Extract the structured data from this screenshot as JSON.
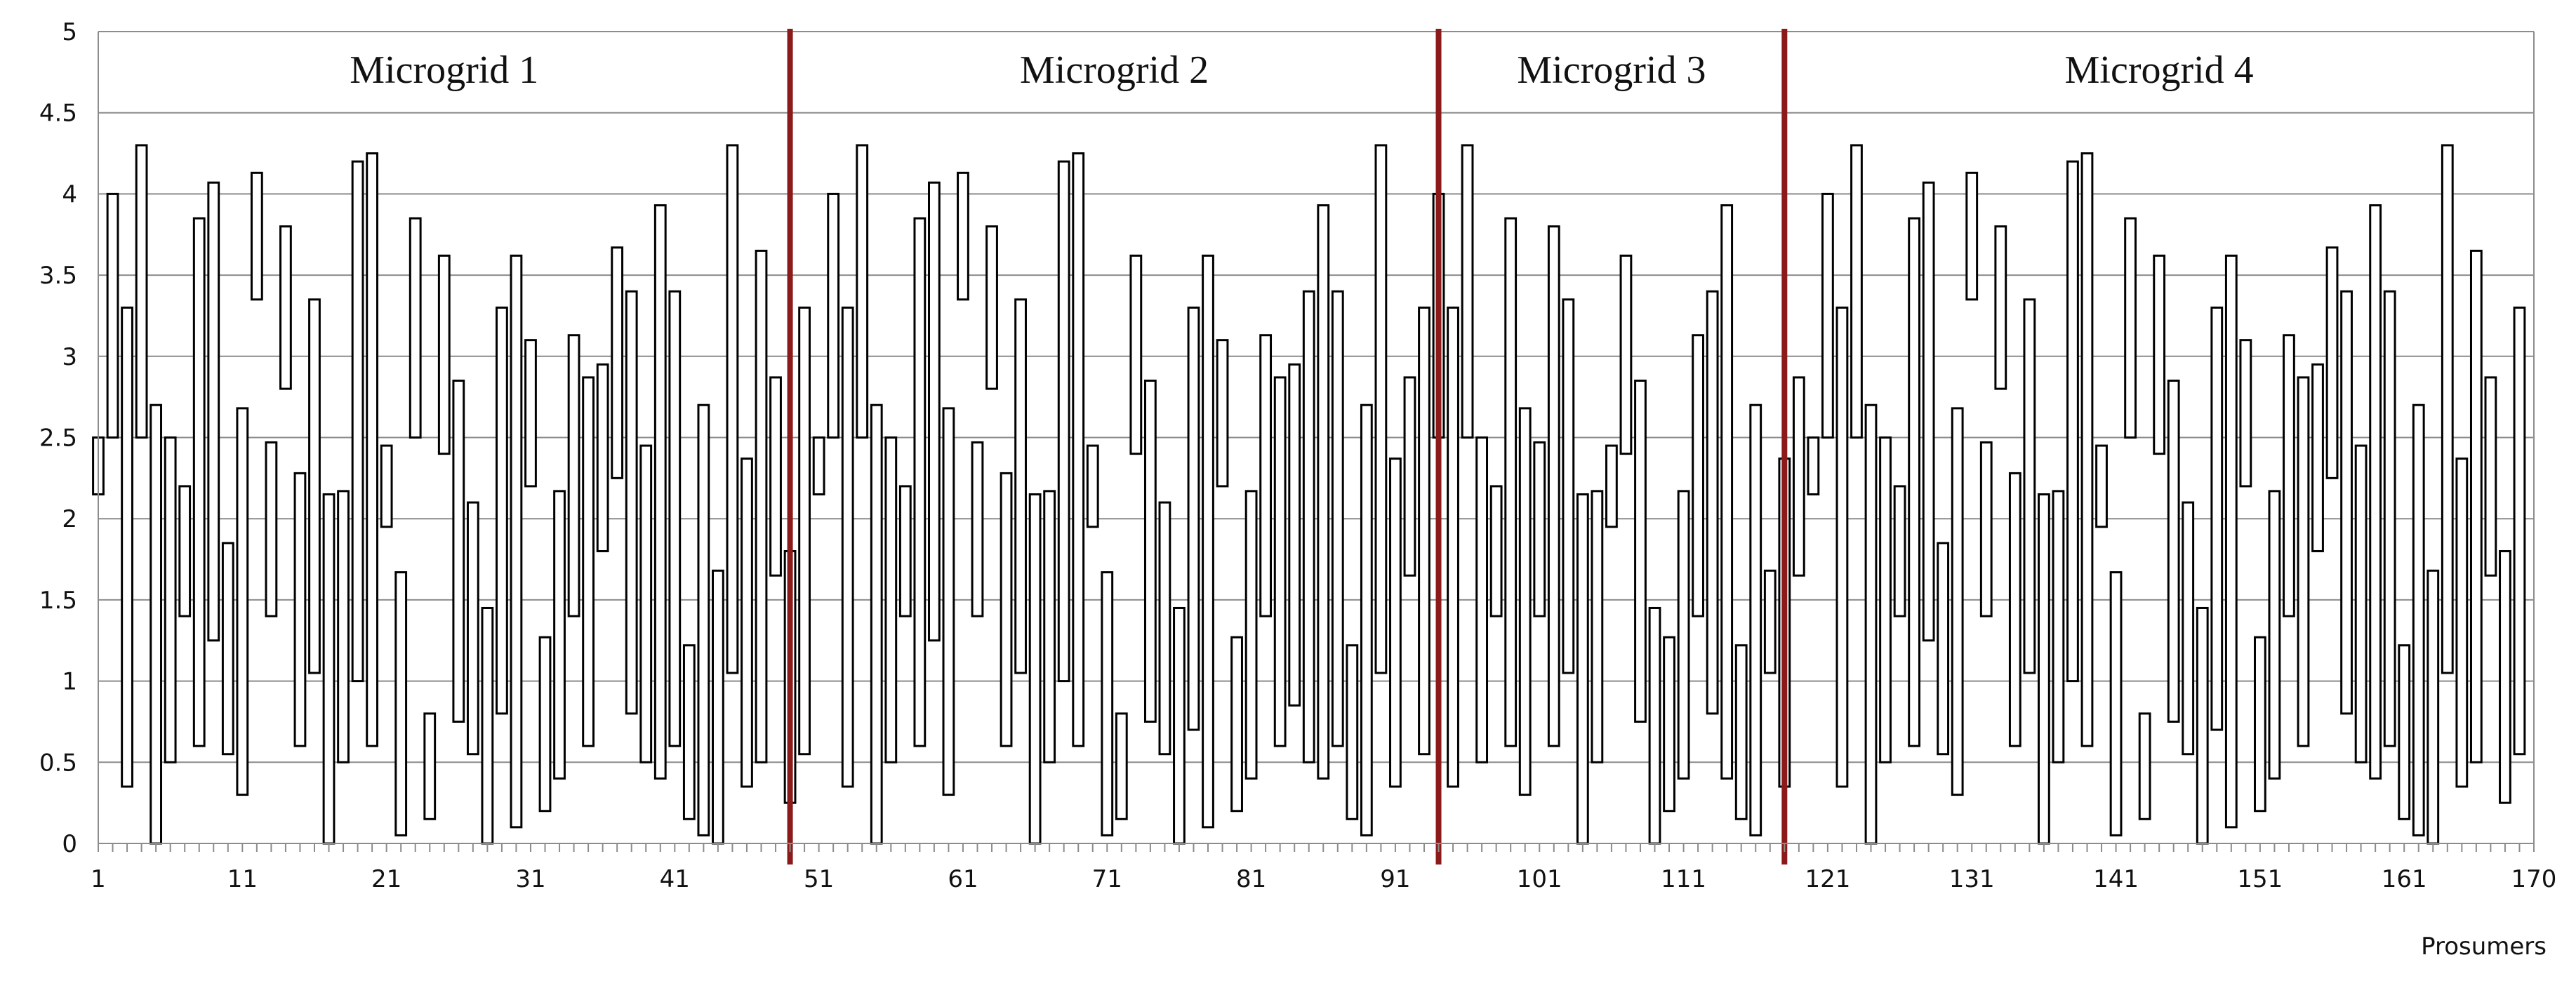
{
  "chart_data": {
    "type": "bar",
    "title": "",
    "xlabel": "Prosumers",
    "ylabel": "",
    "ylim": [
      0,
      5
    ],
    "xlim": [
      1,
      170
    ],
    "grid": true,
    "legend": "none",
    "bar_style": "floating ranges (low–high) drawn as hollow outlined bars",
    "y_ticks": [
      "0",
      "0.5",
      "1",
      "1.5",
      "2",
      "2.5",
      "3",
      "3.5",
      "4",
      "4.5",
      "5"
    ],
    "x_ticks": [
      "1",
      "11",
      "21",
      "31",
      "41",
      "51",
      "61",
      "71",
      "81",
      "91",
      "101",
      "111",
      "121",
      "131",
      "141",
      "151",
      "161",
      "170"
    ],
    "regions": [
      {
        "label": "Microgrid 1",
        "start": 1,
        "end": 49
      },
      {
        "label": "Microgrid 2",
        "start": 49,
        "end": 94
      },
      {
        "label": "Microgrid 3",
        "start": 94,
        "end": 118
      },
      {
        "label": "Microgrid 4",
        "start": 118,
        "end": 170
      }
    ],
    "divider_color": "#8B1A1A",
    "bar_stroke_color": "#000000",
    "low": [
      2.15,
      2.5,
      0.35,
      2.5,
      0,
      0.5,
      1.4,
      0.6,
      1.25,
      0.55,
      0.3,
      3.35,
      1.4,
      2.8,
      0.6,
      1.05,
      0,
      0.5,
      1.0,
      0.6,
      1.95,
      0.05,
      2.5,
      0.15,
      2.4,
      0.75,
      0.55,
      0,
      0.8,
      0.1,
      2.2,
      0.2,
      0.4,
      1.4,
      0.6,
      1.8,
      2.25,
      0.8,
      0.5,
      0.4,
      0.6,
      0.15,
      0.05,
      0,
      1.05,
      0.35,
      0.5,
      1.65,
      0.25,
      0.55,
      2.15,
      2.5,
      0.35,
      2.5,
      0,
      0.5,
      1.4,
      0.6,
      1.25,
      0.3,
      3.35,
      1.4,
      2.8,
      0.6,
      1.05,
      0,
      0.5,
      1.0,
      0.6,
      1.95,
      0.05,
      0.15,
      2.4,
      0.75,
      0.55,
      0,
      0.7,
      0.1,
      2.2,
      0.2,
      0.4,
      1.4,
      0.6,
      0.85,
      0.5,
      0.4,
      0.6,
      0.15,
      0.05,
      1.05,
      0.35,
      1.65,
      0.55,
      2.5,
      0.35,
      2.5,
      0.5,
      1.4,
      0.6,
      0.3,
      1.4,
      0.6,
      1.05,
      0,
      0.5,
      1.95,
      2.4,
      0.75,
      0,
      0.2,
      0.4,
      1.4,
      0.8,
      0.4,
      0.15,
      0.05,
      1.05,
      0.35,
      1.65,
      2.15,
      2.5,
      0.35,
      2.5,
      0,
      0.5,
      1.4,
      0.6,
      1.25,
      0.55,
      0.3,
      3.35,
      1.4,
      2.8,
      0.6,
      1.05,
      0,
      0.5,
      1.0,
      0.6,
      1.95,
      0.05,
      2.5,
      0.15,
      2.4,
      0.75,
      0.55,
      0,
      0.7,
      0.1,
      2.2,
      0.2,
      0.4,
      1.4,
      0.6,
      1.8,
      2.25,
      0.8,
      0.5,
      0.4,
      0.6,
      0.15,
      0.05,
      0,
      1.05,
      0.35,
      0.5,
      1.65,
      0.25,
      0.55
    ],
    "high": [
      2.5,
      4.0,
      3.3,
      4.3,
      2.7,
      2.5,
      2.2,
      3.85,
      4.07,
      1.85,
      2.68,
      4.13,
      2.47,
      3.8,
      2.28,
      3.35,
      2.15,
      2.17,
      4.2,
      4.25,
      2.45,
      1.67,
      3.85,
      0.8,
      3.62,
      2.85,
      2.1,
      1.45,
      3.3,
      3.62,
      3.1,
      1.27,
      2.17,
      3.13,
      2.87,
      2.95,
      3.67,
      3.4,
      2.45,
      3.93,
      3.4,
      1.22,
      2.7,
      1.68,
      4.3,
      2.37,
      3.65,
      2.87,
      1.8,
      3.3,
      2.5,
      4.0,
      3.3,
      4.3,
      2.7,
      2.5,
      2.2,
      3.85,
      4.07,
      2.68,
      4.13,
      2.47,
      3.8,
      2.28,
      3.35,
      2.15,
      2.17,
      4.2,
      4.25,
      2.45,
      1.67,
      0.8,
      3.62,
      2.85,
      2.1,
      1.45,
      3.3,
      3.62,
      3.1,
      1.27,
      2.17,
      3.13,
      2.87,
      2.95,
      3.4,
      3.93,
      3.4,
      1.22,
      2.7,
      4.3,
      2.37,
      2.87,
      3.3,
      4.0,
      3.3,
      4.3,
      2.5,
      2.2,
      3.85,
      2.68,
      2.47,
      3.8,
      3.35,
      2.15,
      2.17,
      2.45,
      3.62,
      2.85,
      1.45,
      1.27,
      2.17,
      3.13,
      3.4,
      3.93,
      1.22,
      2.7,
      1.68,
      2.37,
      2.87,
      2.5,
      4.0,
      3.3,
      4.3,
      2.7,
      2.5,
      2.2,
      3.85,
      4.07,
      1.85,
      2.68,
      4.13,
      2.47,
      3.8,
      2.28,
      3.35,
      2.15,
      2.17,
      4.2,
      4.25,
      2.45,
      1.67,
      3.85,
      0.8,
      3.62,
      2.85,
      2.1,
      1.45,
      3.3,
      3.62,
      3.1,
      1.27,
      2.17,
      3.13,
      2.87,
      2.95,
      3.67,
      3.4,
      2.45,
      3.93,
      3.4,
      1.22,
      2.7,
      1.68,
      4.3,
      2.37,
      3.65,
      2.87,
      1.8,
      3.3
    ]
  }
}
